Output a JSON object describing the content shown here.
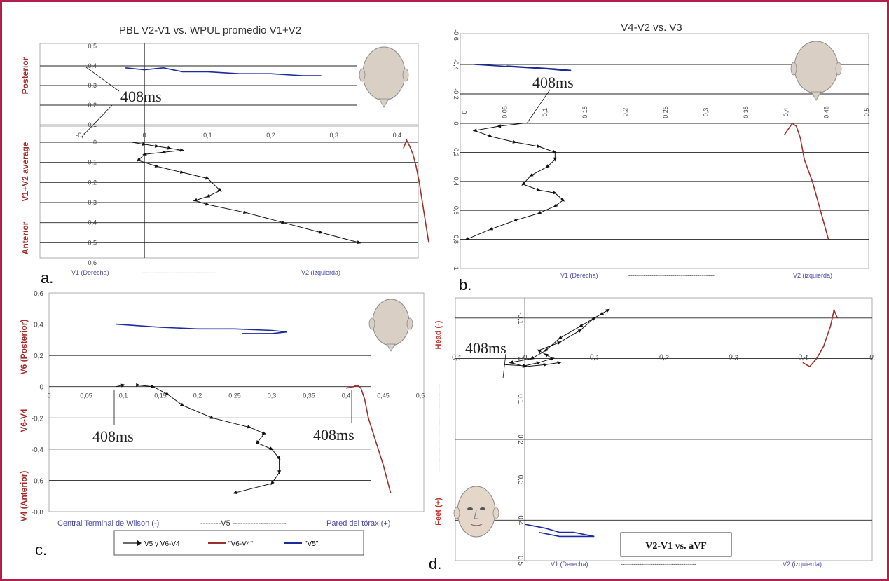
{
  "panels": {
    "a": {
      "letter": "a.",
      "title": "PBL V2-V1 vs. WPUL promedio V1+V2",
      "ylabel_top": "Posterior",
      "ylabel_mid": "V1+V2 average",
      "ylabel_bottom": "Anterior",
      "bottom_left": "V1 (Derecha)",
      "bottom_dash": "------------------------------------",
      "bottom_right": "V2 (izquierda)",
      "annotation": "408ms",
      "xticks": [
        "-0,1",
        "0",
        "0,1",
        "0,2",
        "0,3",
        "0,4"
      ],
      "upper_yticks": [
        "0,5",
        "0,4",
        "0,3",
        "0,2",
        "0,1"
      ],
      "lower_yticks": [
        "0",
        "0,1",
        "0,2",
        "0,3",
        "0,4",
        "0,5",
        "0,6"
      ]
    },
    "b": {
      "letter": "b.",
      "title": "V4-V2 vs. V3",
      "bottom_left": "V1 (Derecha)",
      "bottom_dash": "-----------------------------------------",
      "bottom_right": "V2 (izquierda)",
      "annotation": "408ms",
      "xticks": [
        "0",
        "0,05",
        "0,1",
        "0,15",
        "0,2",
        "0,25",
        "0,3",
        "0,35",
        "0,4",
        "0,45",
        "0,5"
      ],
      "upper_yticks": [
        "-0,6",
        "-0,4",
        "-0,2"
      ],
      "lower_yticks": [
        "0",
        "0,2",
        "0,4",
        "0,6",
        "0,8",
        "1"
      ]
    },
    "c": {
      "letter": "c.",
      "ylabel_top": "V6 (Posterior)",
      "ylabel_mid": "V6-V4",
      "ylabel_bottom": "V4 (Anterior)",
      "bottom_left": "Central Terminal de Wilson (-)",
      "bottom_mid": "--------V5 ---------------------",
      "bottom_right": "Pared del tórax (+)",
      "annotation_left": "408ms",
      "annotation_right": "408ms",
      "xticks": [
        "0",
        "0,05",
        "0,1",
        "0,15",
        "0,2",
        "0,25",
        "0,3",
        "0,35",
        "0,4",
        "0,45",
        "0,5"
      ],
      "yticks": [
        "0,6",
        "0,4",
        "0,2",
        "0",
        "-0,2",
        "-0,4",
        "-0,6",
        "-0,8"
      ],
      "legend": [
        "V5 y V6-V4",
        "\"V6-V4\"",
        "\"V5\""
      ]
    },
    "d": {
      "letter": "d.",
      "ylabel_top": "Head (-)",
      "ylabel_dash": "-----------------------------------------------",
      "ylabel_bottom": "Feet (+)",
      "bottom_left": "V1 (Derecha)",
      "bottom_dash": "------------------------------------",
      "bottom_right": "V2 (izquierda)",
      "annotation": "408ms",
      "xticks": [
        "-0,1",
        "0",
        "0,1",
        "0,2",
        "0,3",
        "0,4",
        "0,"
      ],
      "yticks": [
        "-0,1",
        "0",
        "0,1",
        "0,2",
        "0,3",
        "0,4",
        "0,5"
      ],
      "box_title": "V2-V1 vs. aVF"
    }
  },
  "colors": {
    "frame": "#b0204a",
    "label_red": "#a52a2a",
    "label_blue": "#4a4aa8",
    "curve_black": "#111111",
    "curve_red": "#a0302a",
    "curve_blue": "#1c2a9c",
    "head": "#d9cfc4"
  },
  "chart_data": [
    {
      "type": "line",
      "panel": "a",
      "title": "PBL V2-V1 vs. WPUL promedio V1+V2",
      "xlim": [
        -0.1,
        0.45
      ],
      "upper_ylim": [
        0.1,
        0.5
      ],
      "lower_ylim": [
        0,
        0.6
      ],
      "series": [
        {
          "x": [
            -0.02,
            0.0,
            0.02,
            0.04,
            0.06,
            0.03,
            0.0,
            -0.01,
            0.02,
            0.06,
            0.1,
            0.12,
            0.1,
            0.08,
            0.1,
            0.16,
            0.22,
            0.28,
            0.34
          ],
          "y": [
            0.0,
            0.01,
            0.02,
            0.03,
            0.04,
            0.05,
            0.06,
            0.09,
            0.12,
            0.15,
            0.18,
            0.24,
            0.27,
            0.29,
            0.31,
            0.35,
            0.4,
            0.45,
            0.5
          ]
        },
        {
          "x": [
            0.41,
            0.415,
            0.42,
            0.425,
            0.43,
            0.435,
            0.44,
            0.445,
            0.45
          ],
          "y": [
            0.03,
            -0.01,
            0.02,
            0.06,
            0.12,
            0.2,
            0.3,
            0.4,
            0.5
          ]
        },
        {
          "x": [
            -0.03,
            0.0,
            0.03,
            0.06,
            0.1,
            0.15,
            0.2,
            0.25,
            0.28
          ],
          "y": [
            0.39,
            0.38,
            0.39,
            0.37,
            0.37,
            0.36,
            0.36,
            0.35,
            0.35
          ]
        }
      ]
    },
    {
      "type": "line",
      "panel": "b",
      "title": "V4-V2 vs. V3",
      "xlim": [
        0,
        0.5
      ],
      "upper_ylim": [
        -0.6,
        -0.2
      ],
      "lower_ylim": [
        0,
        1
      ],
      "series": [
        {
          "x": [
            0.07,
            0.04,
            0.01,
            0.03,
            0.06,
            0.09,
            0.11,
            0.11,
            0.1,
            0.08,
            0.07,
            0.09,
            0.11,
            0.12,
            0.11,
            0.09,
            0.06,
            0.03,
            0.0
          ],
          "y": [
            0.0,
            0.02,
            0.05,
            0.09,
            0.13,
            0.16,
            0.2,
            0.25,
            0.3,
            0.36,
            0.42,
            0.46,
            0.48,
            0.53,
            0.57,
            0.62,
            0.67,
            0.73,
            0.8
          ]
        },
        {
          "x": [
            0.395,
            0.405,
            0.41,
            0.415,
            0.42,
            0.43,
            0.44,
            0.45
          ],
          "y": [
            0.08,
            0.0,
            0.02,
            0.1,
            0.25,
            0.4,
            0.6,
            0.8
          ]
        },
        {
          "x": [
            0.01,
            0.04,
            0.07,
            0.1,
            0.12,
            0.13,
            0.11,
            0.08,
            0.05
          ],
          "y": [
            -0.4,
            -0.39,
            -0.38,
            -0.37,
            -0.36,
            -0.36,
            -0.37,
            -0.38,
            -0.39
          ]
        }
      ]
    },
    {
      "type": "line",
      "panel": "c",
      "xlim": [
        0,
        0.5
      ],
      "ylim": [
        -0.8,
        0.6
      ],
      "series": [
        {
          "name": "V5 y V6-V4",
          "x": [
            0.09,
            0.1,
            0.12,
            0.14,
            0.16,
            0.18,
            0.22,
            0.27,
            0.29,
            0.28,
            0.3,
            0.31,
            0.31,
            0.3,
            0.25
          ],
          "y": [
            0.0,
            0.01,
            0.01,
            0.0,
            -0.05,
            -0.12,
            -0.2,
            -0.26,
            -0.3,
            -0.36,
            -0.4,
            -0.46,
            -0.55,
            -0.62,
            -0.68
          ]
        },
        {
          "name": "\"V6-V4\"",
          "x": [
            0.4,
            0.41,
            0.415,
            0.42,
            0.425,
            0.43,
            0.44,
            0.45,
            0.46
          ],
          "y": [
            -0.01,
            0.0,
            0.01,
            -0.01,
            -0.08,
            -0.2,
            -0.35,
            -0.5,
            -0.68
          ]
        },
        {
          "name": "\"V5\"",
          "x": [
            0.09,
            0.12,
            0.15,
            0.2,
            0.25,
            0.3,
            0.32,
            0.3,
            0.26
          ],
          "y": [
            0.4,
            0.39,
            0.38,
            0.37,
            0.37,
            0.36,
            0.35,
            0.34,
            0.34
          ]
        }
      ]
    },
    {
      "type": "line",
      "panel": "d",
      "title": "V2-V1 vs. aVF",
      "xlim": [
        -0.1,
        0.5
      ],
      "ylim": [
        -0.15,
        0.5
      ],
      "series": [
        {
          "x": [
            -0.03,
            0.0,
            0.02,
            0.04,
            0.03,
            0.02,
            0.05,
            0.08,
            0.1,
            0.12,
            0.11,
            0.08,
            0.05,
            0.03,
            0.01,
            -0.02,
            0.0,
            0.03,
            0.05
          ],
          "y": [
            0.015,
            0.018,
            0.01,
            0.0,
            -0.01,
            -0.02,
            -0.04,
            -0.07,
            -0.1,
            -0.12,
            -0.11,
            -0.08,
            -0.05,
            -0.02,
            0.0,
            0.01,
            0.02,
            0.015,
            0.01
          ]
        },
        {
          "x": [
            0.4,
            0.41,
            0.42,
            0.43,
            0.44,
            0.445,
            0.45
          ],
          "y": [
            0.01,
            0.02,
            0.0,
            -0.03,
            -0.08,
            -0.12,
            -0.1
          ]
        },
        {
          "x": [
            0.0,
            0.03,
            0.05,
            0.07,
            0.1,
            0.05,
            0.02
          ],
          "y": [
            0.41,
            0.42,
            0.43,
            0.43,
            0.44,
            0.44,
            0.43
          ]
        }
      ]
    }
  ]
}
